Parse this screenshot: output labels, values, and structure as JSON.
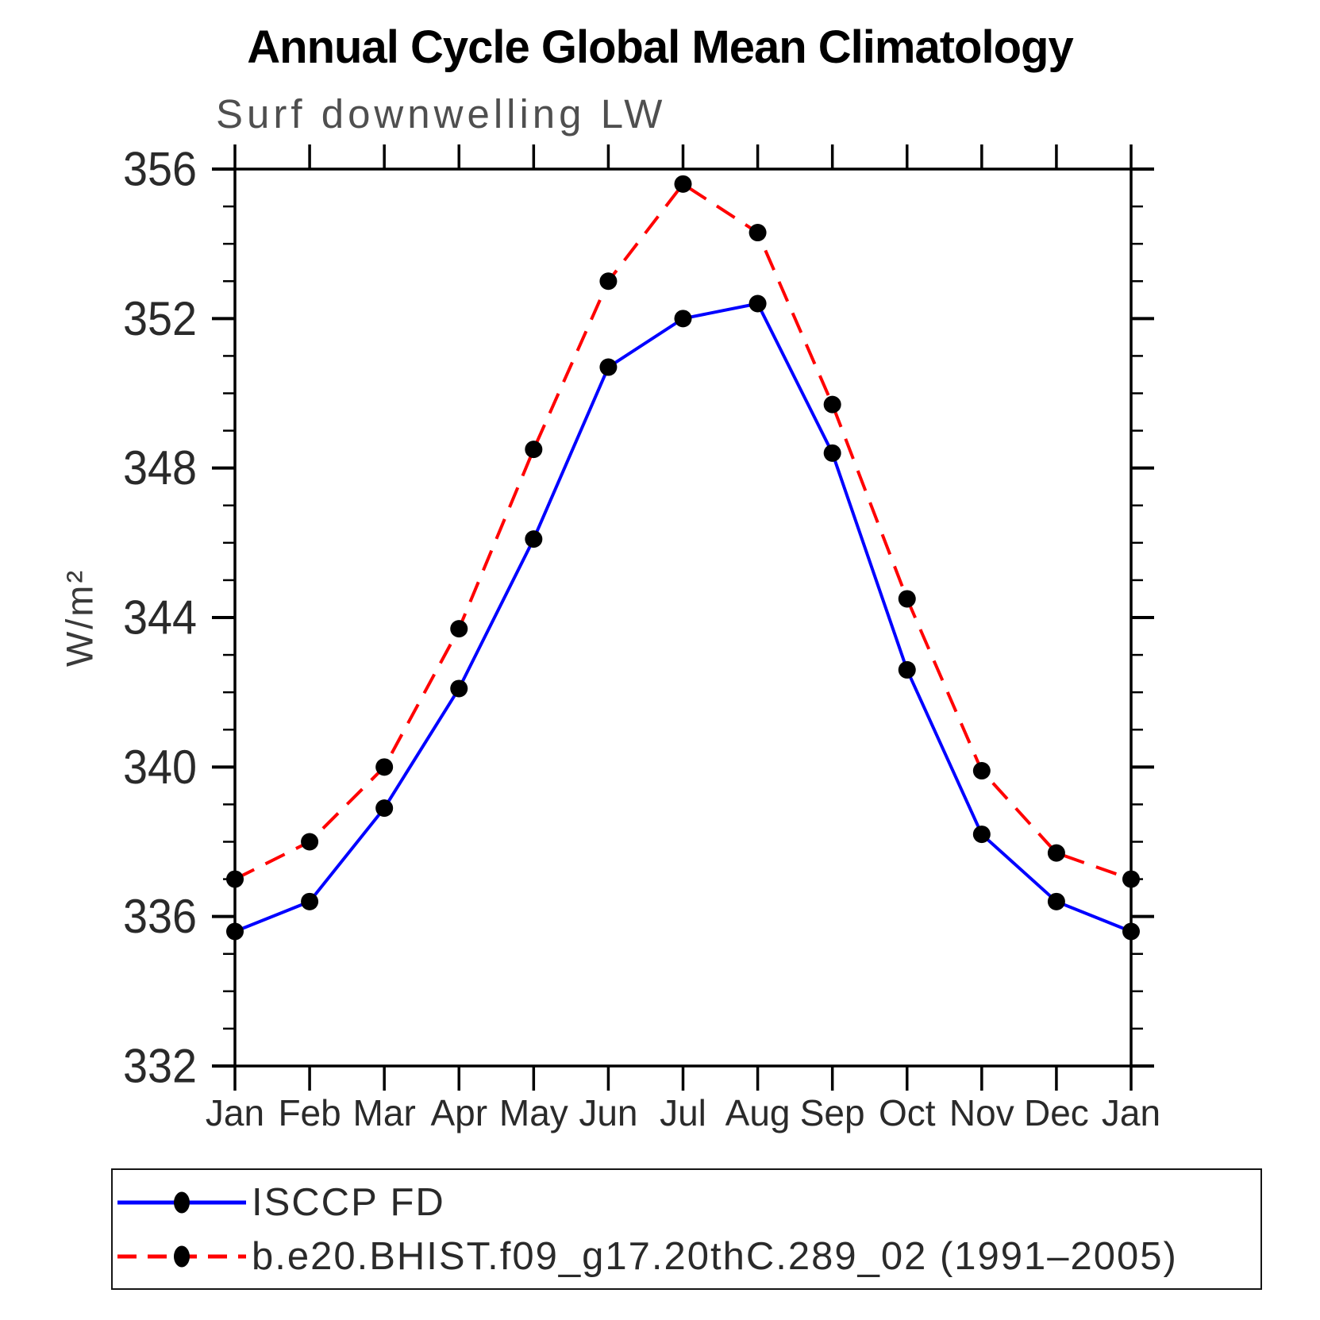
{
  "title": "Annual Cycle Global Mean Climatology",
  "subtitle": "Surf downwelling LW",
  "ylabel": "W/m²",
  "colors": {
    "background": "#ffffff",
    "axis": "#000000",
    "tick_label": "#2a2a2a",
    "subtitle_text": "#4f4f4f",
    "marker": "#000000",
    "series1": "#0000ff",
    "series2": "#ff0000"
  },
  "chart_data": {
    "type": "line",
    "title": "Annual Cycle Global Mean Climatology",
    "subtitle": "Surf downwelling LW",
    "xlabel": "",
    "ylabel": "W/m²",
    "x_categories": [
      "Jan",
      "Feb",
      "Mar",
      "Apr",
      "May",
      "Jun",
      "Jul",
      "Aug",
      "Sep",
      "Oct",
      "Nov",
      "Dec",
      "Jan"
    ],
    "ylim": [
      332,
      356
    ],
    "y_major_ticks": [
      332,
      336,
      340,
      344,
      348,
      352,
      356
    ],
    "y_major_tick_step": 4,
    "y_minor_tick_step": 1,
    "grid": false,
    "legend_position": "bottom",
    "series": [
      {
        "name": "ISCCP FD",
        "color": "#0000ff",
        "line_style": "solid",
        "marker": "black-dot",
        "values": [
          335.6,
          336.4,
          338.9,
          342.1,
          346.1,
          350.7,
          352.0,
          352.4,
          348.4,
          342.6,
          338.2,
          336.4,
          335.6
        ]
      },
      {
        "name": "b.e20.BHIST.f09_g17.20thC.289_02 (1991–2005)",
        "color": "#ff0000",
        "line_style": "dashed",
        "marker": "black-dot",
        "values": [
          337.0,
          338.0,
          340.0,
          343.7,
          348.5,
          353.0,
          355.6,
          354.3,
          349.7,
          344.5,
          339.9,
          337.7,
          337.0
        ]
      }
    ]
  }
}
